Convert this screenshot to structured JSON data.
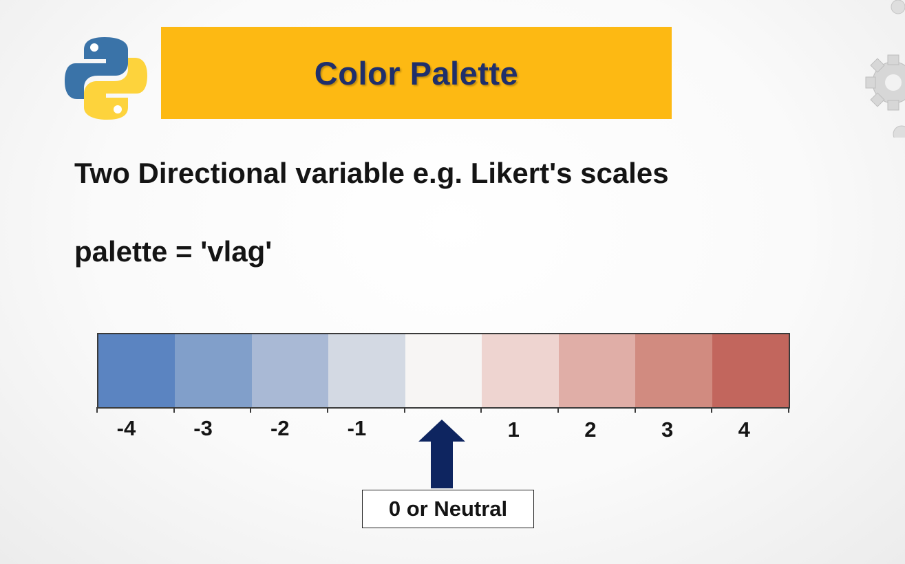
{
  "slide": {
    "title": "Color Palette",
    "subtitle": "Two Directional variable e.g. Likert's scales",
    "palette_line": "palette = 'vlag'",
    "neutral_label": "0 or Neutral"
  },
  "palette": {
    "swatches": [
      {
        "value": -4,
        "color": "#5b84c1"
      },
      {
        "value": -3,
        "color": "#819fca"
      },
      {
        "value": -2,
        "color": "#a9b9d5"
      },
      {
        "value": -1,
        "color": "#d3d9e3"
      },
      {
        "value": 0,
        "color": "#f7f5f4"
      },
      {
        "value": 1,
        "color": "#eed4d0"
      },
      {
        "value": 2,
        "color": "#e0aea7"
      },
      {
        "value": 3,
        "color": "#d18b80"
      },
      {
        "value": 4,
        "color": "#c2665d"
      }
    ],
    "tick_labels": [
      "-4",
      "-3",
      "-2",
      "-1",
      "1",
      "2",
      "3",
      "4"
    ]
  },
  "colors": {
    "banner": "#fdb913",
    "title_text": "#1f2f6b",
    "arrow": "#0e2560",
    "python_blue": "#3a73a8",
    "python_yellow": "#fdd33c"
  },
  "icons": {
    "logo": "python-logo-icon",
    "arrow": "arrow-up-icon",
    "decoration": "gear-icon"
  }
}
